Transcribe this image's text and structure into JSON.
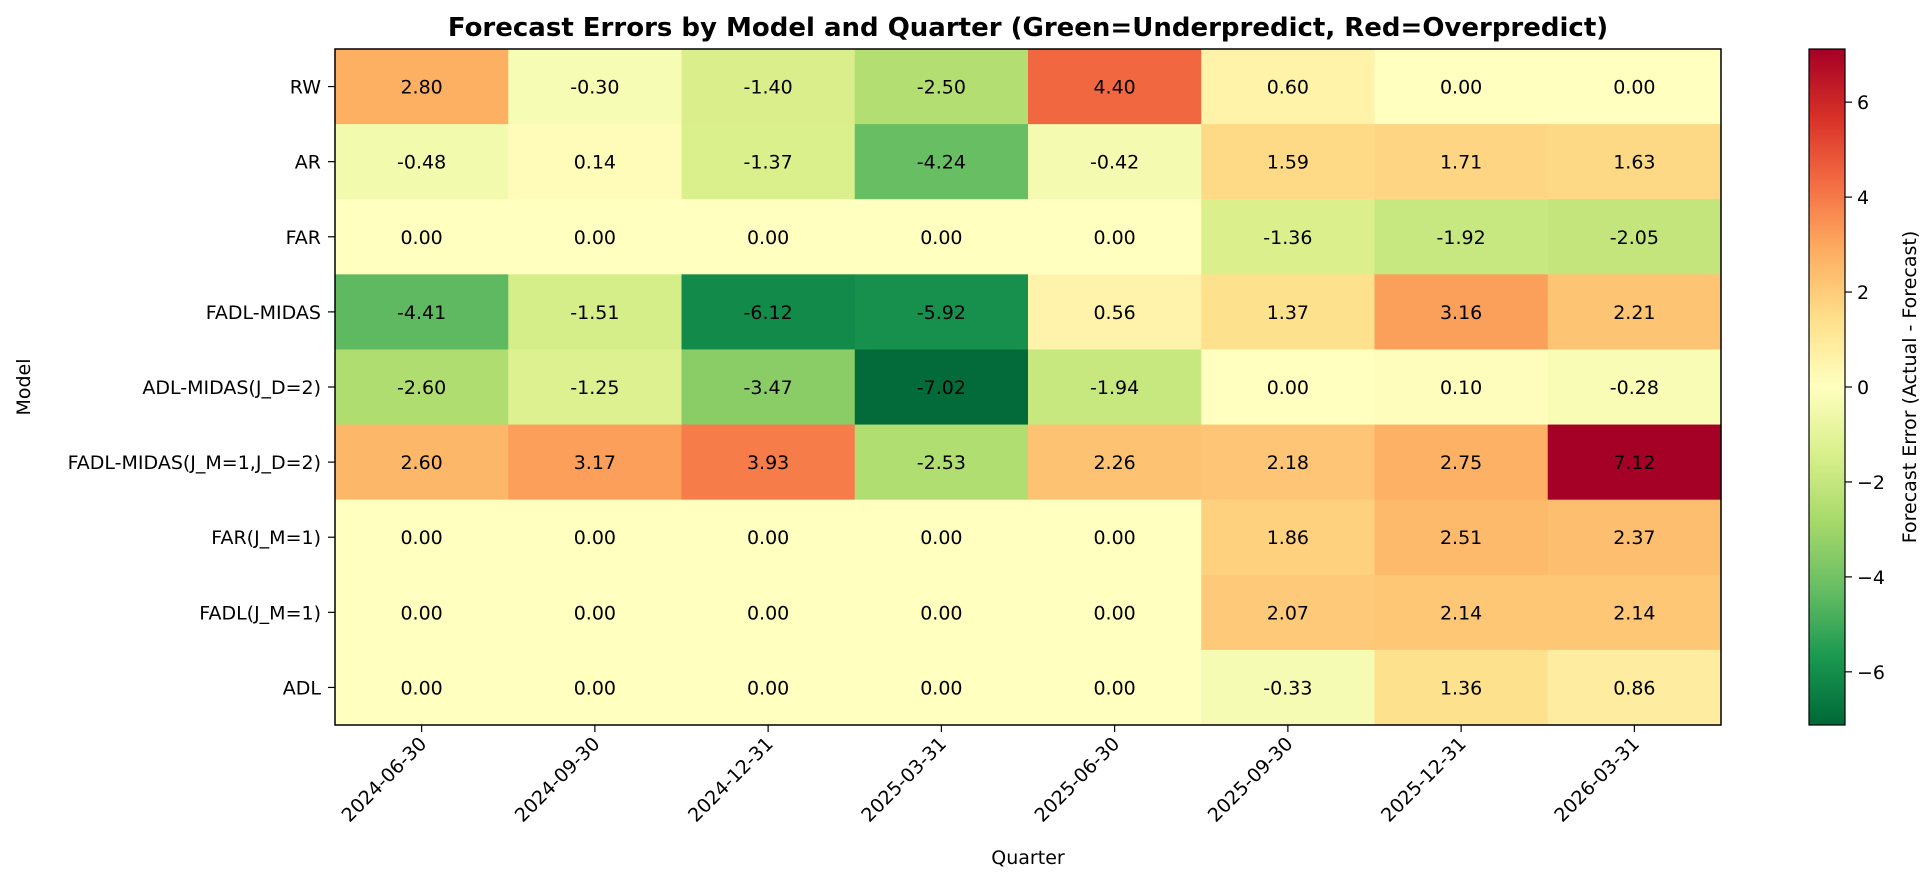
{
  "chart_data": {
    "type": "heatmap",
    "title": "Forecast Errors by Model and Quarter (Green=Underpredict, Red=Overpredict)",
    "xlabel": "Quarter",
    "ylabel": "Model",
    "colorbar_label": "Forecast Error (Actual - Forecast)",
    "colormap": "RdYlGn_r",
    "vmin": -7.12,
    "vmax": 7.12,
    "colorbar_ticks": [
      -6,
      -4,
      -2,
      0,
      2,
      4,
      6
    ],
    "colorbar_tick_labels": [
      "−6",
      "−4",
      "−2",
      "0",
      "2",
      "4",
      "6"
    ],
    "x": [
      "2024-06-30",
      "2024-09-30",
      "2024-12-31",
      "2025-03-31",
      "2025-06-30",
      "2025-09-30",
      "2025-12-31",
      "2026-03-31"
    ],
    "y": [
      "RW",
      "AR",
      "FAR",
      "FADL-MIDAS",
      "ADL-MIDAS(J_D=2)",
      "FADL-MIDAS(J_M=1,J_D=2)",
      "FAR(J_M=1)",
      "FADL(J_M=1)",
      "ADL"
    ],
    "values": [
      [
        2.8,
        -0.3,
        -1.4,
        -2.5,
        4.4,
        0.6,
        0.0,
        0.0
      ],
      [
        -0.48,
        0.14,
        -1.37,
        -4.24,
        -0.42,
        1.59,
        1.71,
        1.63
      ],
      [
        0.0,
        0.0,
        0.0,
        0.0,
        0.0,
        -1.36,
        -1.92,
        -2.05
      ],
      [
        -4.41,
        -1.51,
        -6.12,
        -5.92,
        0.56,
        1.37,
        3.16,
        2.21
      ],
      [
        -2.6,
        -1.25,
        -3.47,
        -7.02,
        -1.94,
        0.0,
        0.1,
        -0.28
      ],
      [
        2.6,
        3.17,
        3.93,
        -2.53,
        2.26,
        2.18,
        2.75,
        7.12
      ],
      [
        0.0,
        0.0,
        0.0,
        0.0,
        0.0,
        1.86,
        2.51,
        2.37
      ],
      [
        0.0,
        0.0,
        0.0,
        0.0,
        0.0,
        2.07,
        2.14,
        2.14
      ],
      [
        0.0,
        0.0,
        0.0,
        0.0,
        0.0,
        -0.33,
        1.36,
        0.86
      ]
    ],
    "grid": false,
    "colorbar_position": "right"
  }
}
